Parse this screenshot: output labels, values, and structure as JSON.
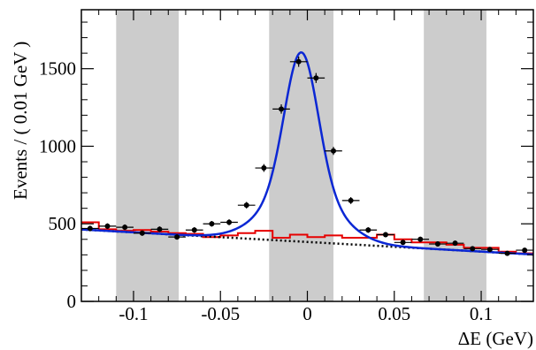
{
  "chart_data": {
    "type": "scatter",
    "xlabel": "ΔE (GeV)",
    "ylabel": "Events / ( 0.01 GeV )",
    "xlim": [
      -0.13,
      0.13
    ],
    "ylim": [
      0,
      1880
    ],
    "x_ticks": [
      -0.1,
      -0.05,
      0,
      0.05,
      0.1
    ],
    "x_tick_labels": [
      "-0.1",
      "-0.05",
      "0",
      "0.05",
      "0.1"
    ],
    "y_ticks": [
      0,
      500,
      1000,
      1500
    ],
    "y_tick_labels": [
      "0",
      "500",
      "1000",
      "1500"
    ],
    "shaded_bands": [
      {
        "from": -0.11,
        "to": -0.074
      },
      {
        "from": -0.022,
        "to": 0.015
      },
      {
        "from": 0.067,
        "to": 0.103
      }
    ],
    "series": [
      {
        "kind": "data_points",
        "color": "#000000",
        "x_halfwidth": 0.005,
        "points": [
          {
            "x": -0.125,
            "y": 470,
            "err": 18
          },
          {
            "x": -0.115,
            "y": 485,
            "err": 18
          },
          {
            "x": -0.105,
            "y": 478,
            "err": 18
          },
          {
            "x": -0.095,
            "y": 440,
            "err": 17
          },
          {
            "x": -0.085,
            "y": 465,
            "err": 18
          },
          {
            "x": -0.075,
            "y": 415,
            "err": 17
          },
          {
            "x": -0.065,
            "y": 460,
            "err": 18
          },
          {
            "x": -0.055,
            "y": 500,
            "err": 18
          },
          {
            "x": -0.045,
            "y": 510,
            "err": 19
          },
          {
            "x": -0.035,
            "y": 620,
            "err": 21
          },
          {
            "x": -0.025,
            "y": 860,
            "err": 25
          },
          {
            "x": -0.015,
            "y": 1240,
            "err": 30
          },
          {
            "x": -0.005,
            "y": 1545,
            "err": 33
          },
          {
            "x": 0.005,
            "y": 1440,
            "err": 32
          },
          {
            "x": 0.015,
            "y": 970,
            "err": 26
          },
          {
            "x": 0.025,
            "y": 650,
            "err": 22
          },
          {
            "x": 0.035,
            "y": 460,
            "err": 18
          },
          {
            "x": 0.045,
            "y": 430,
            "err": 17
          },
          {
            "x": 0.055,
            "y": 380,
            "err": 16
          },
          {
            "x": 0.065,
            "y": 400,
            "err": 17
          },
          {
            "x": 0.075,
            "y": 370,
            "err": 16
          },
          {
            "x": 0.085,
            "y": 375,
            "err": 16
          },
          {
            "x": 0.095,
            "y": 340,
            "err": 15
          },
          {
            "x": 0.105,
            "y": 335,
            "err": 15
          },
          {
            "x": 0.115,
            "y": 310,
            "err": 15
          },
          {
            "x": 0.125,
            "y": 330,
            "err": 15
          }
        ]
      },
      {
        "kind": "fit_total",
        "color": "#0b27d4",
        "model": {
          "bkg_a": 383,
          "bkg_b": -620,
          "peak_mean": -0.0035,
          "peak_height": 1220,
          "core_sigma": 0.0095,
          "core_frac": 0.72,
          "tail_sigma": 0.02
        }
      },
      {
        "kind": "fit_background",
        "color": "#000000",
        "style": "dotted"
      },
      {
        "kind": "histogram",
        "color": "#e60000",
        "edges": [
          -0.13,
          -0.12,
          -0.11,
          -0.1,
          -0.09,
          -0.08,
          -0.07,
          -0.06,
          -0.05,
          -0.04,
          -0.03,
          -0.02,
          -0.01,
          0,
          0.01,
          0.02,
          0.03,
          0.04,
          0.05,
          0.06,
          0.07,
          0.08,
          0.09,
          0.1,
          0.11,
          0.12,
          0.13
        ],
        "values": [
          510,
          465,
          455,
          460,
          450,
          440,
          435,
          415,
          425,
          440,
          455,
          410,
          430,
          415,
          425,
          410,
          410,
          430,
          400,
          380,
          380,
          365,
          345,
          345,
          320,
          310
        ]
      }
    ]
  }
}
